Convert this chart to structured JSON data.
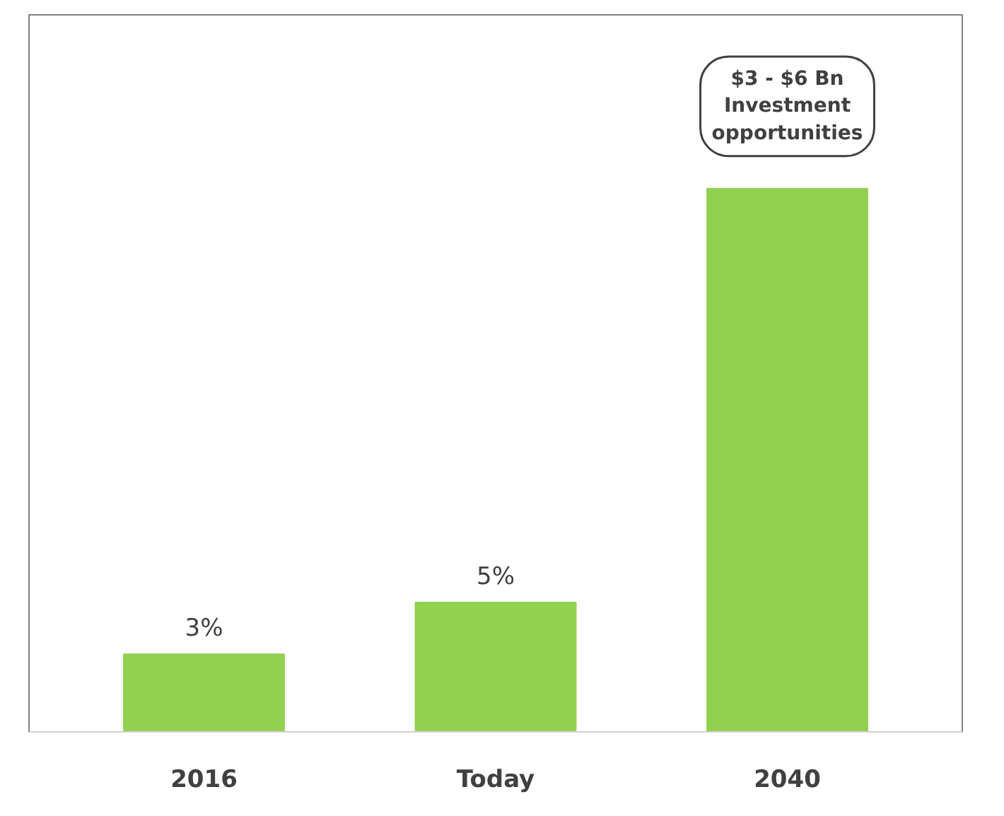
{
  "chart_data": {
    "type": "bar",
    "categories": [
      "2016",
      "Today",
      "2040"
    ],
    "values": [
      3,
      5,
      21
    ],
    "value_labels": [
      "3%",
      "5%",
      null
    ],
    "color": "#92d050",
    "grid": false,
    "annotations": [
      "$3 - $6 Bn\nInvestment\nopportunities"
    ]
  }
}
